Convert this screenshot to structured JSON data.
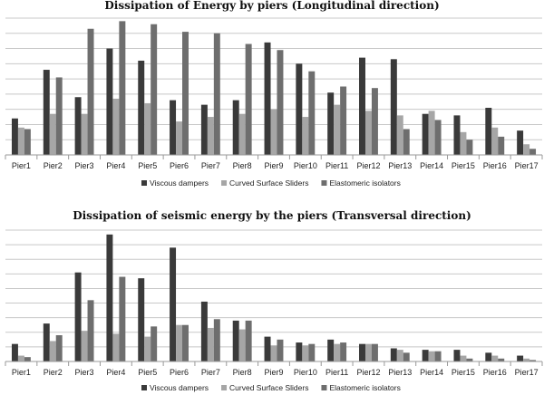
{
  "chart_data": [
    {
      "type": "bar",
      "title": "Dissipation of Energy by piers (Longitudinal direction)",
      "categories": [
        "Pier1",
        "Pier2",
        "Pier3",
        "Pier4",
        "Pier5",
        "Pier6",
        "Pier7",
        "Pier8",
        "Pier9",
        "Pier10",
        "Pier11",
        "Pier12",
        "Pier13",
        "Pier14",
        "Pier15",
        "Pier16",
        "Pier17"
      ],
      "legend_position": "bottom",
      "grid": true,
      "ylim": [
        0,
        9
      ],
      "series": [
        {
          "name": "Viscous dampers",
          "color": "#3a3a3a",
          "values": [
            2.4,
            5.6,
            3.8,
            7.0,
            6.2,
            3.6,
            3.3,
            3.6,
            7.4,
            6.0,
            4.1,
            6.4,
            6.3,
            2.7,
            2.6,
            3.1,
            1.6
          ]
        },
        {
          "name": "Curved Surface Sliders",
          "color": "#a6a6a6",
          "values": [
            1.8,
            2.7,
            2.7,
            3.7,
            3.4,
            2.2,
            2.5,
            2.7,
            3.0,
            2.5,
            3.3,
            2.9,
            2.6,
            2.9,
            1.5,
            1.8,
            0.7
          ]
        },
        {
          "name": "Elastomeric isolators",
          "color": "#6e6e6e",
          "values": [
            1.7,
            5.1,
            8.3,
            8.8,
            8.6,
            8.1,
            8.0,
            7.3,
            6.9,
            5.5,
            4.5,
            4.4,
            1.7,
            2.3,
            1.0,
            1.2,
            0.4
          ]
        }
      ]
    },
    {
      "type": "bar",
      "title": "Dissipation of seismic energy by the piers (Transversal direction)",
      "categories": [
        "Pier1",
        "Pier2",
        "Pier3",
        "Pier4",
        "Pier5",
        "Pier6",
        "Pier7",
        "Pier8",
        "Pier9",
        "Pier10",
        "Pier11",
        "Pier12",
        "Pier13",
        "Pier14",
        "Pier15",
        "Pier16",
        "Pier17"
      ],
      "legend_position": "bottom",
      "grid": true,
      "ylim": [
        0,
        9
      ],
      "series": [
        {
          "name": "Viscous dampers",
          "color": "#3a3a3a",
          "values": [
            1.2,
            2.6,
            6.1,
            8.7,
            5.7,
            7.8,
            4.1,
            2.8,
            1.7,
            1.3,
            1.5,
            1.2,
            0.9,
            0.8,
            0.8,
            0.6,
            0.4
          ]
        },
        {
          "name": "Curved Surface Sliders",
          "color": "#a6a6a6",
          "values": [
            0.4,
            1.4,
            2.1,
            1.9,
            1.7,
            2.5,
            2.3,
            2.2,
            1.1,
            1.1,
            1.2,
            1.2,
            0.8,
            0.7,
            0.4,
            0.4,
            0.2
          ]
        },
        {
          "name": "Elastomeric isolators",
          "color": "#6e6e6e",
          "values": [
            0.3,
            1.8,
            4.2,
            5.8,
            2.4,
            2.5,
            2.9,
            2.8,
            1.5,
            1.2,
            1.3,
            1.2,
            0.6,
            0.7,
            0.2,
            0.2,
            0.1
          ]
        }
      ]
    }
  ]
}
